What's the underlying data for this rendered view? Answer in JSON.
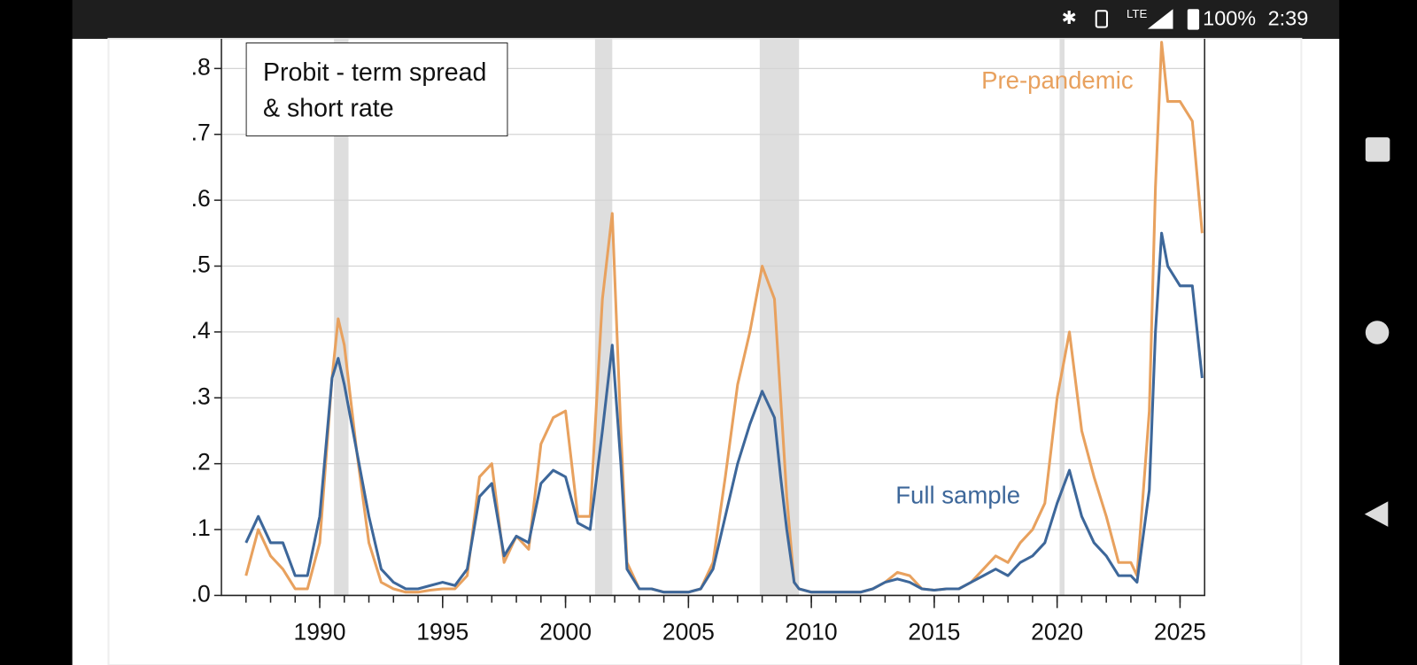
{
  "status_bar": {
    "network": "LTE",
    "battery": "100%",
    "time": "2:39"
  },
  "chart_data": {
    "type": "line",
    "title": "Probit - term spread & short rate",
    "annotations": [
      {
        "text": "Pre-pandemic",
        "color": "#e8a15e"
      },
      {
        "text": "Full sample",
        "color": "#3d679a"
      }
    ],
    "x": [
      1987,
      1987.5,
      1988,
      1988.5,
      1989,
      1989.5,
      1990,
      1990.5,
      1990.75,
      1991,
      1991.5,
      1992,
      1992.5,
      1993,
      1993.5,
      1994,
      1994.5,
      1995,
      1995.5,
      1996,
      1996.5,
      1997,
      1997.5,
      1998,
      1998.5,
      1999,
      1999.5,
      2000,
      2000.5,
      2001,
      2001.5,
      2001.9,
      2002.25,
      2002.5,
      2003,
      2003.5,
      2004,
      2004.5,
      2005,
      2005.5,
      2006,
      2006.5,
      2007,
      2007.5,
      2008,
      2008.5,
      2008.75,
      2009,
      2009.3,
      2009.5,
      2010,
      2011,
      2012,
      2012.5,
      2013,
      2013.5,
      2014,
      2014.5,
      2015,
      2015.5,
      2016,
      2016.5,
      2017,
      2017.5,
      2018,
      2018.5,
      2019,
      2019.5,
      2020,
      2020.5,
      2021,
      2021.5,
      2022,
      2022.5,
      2023,
      2023.25,
      2023.75,
      2024,
      2024.25,
      2024.5,
      2025,
      2025.5,
      2025.9
    ],
    "series": [
      {
        "name": "Full sample",
        "color": "#3d679a",
        "values": [
          0.08,
          0.12,
          0.08,
          0.08,
          0.03,
          0.03,
          0.12,
          0.33,
          0.36,
          0.32,
          0.22,
          0.12,
          0.04,
          0.02,
          0.01,
          0.01,
          0.015,
          0.02,
          0.015,
          0.04,
          0.15,
          0.17,
          0.06,
          0.09,
          0.08,
          0.17,
          0.19,
          0.18,
          0.11,
          0.1,
          0.25,
          0.38,
          0.2,
          0.04,
          0.01,
          0.01,
          0.005,
          0.005,
          0.005,
          0.01,
          0.04,
          0.12,
          0.2,
          0.26,
          0.31,
          0.27,
          0.18,
          0.1,
          0.02,
          0.01,
          0.005,
          0.005,
          0.005,
          0.01,
          0.02,
          0.025,
          0.02,
          0.01,
          0.008,
          0.01,
          0.01,
          0.02,
          0.03,
          0.04,
          0.03,
          0.05,
          0.06,
          0.08,
          0.14,
          0.19,
          0.12,
          0.08,
          0.06,
          0.03,
          0.03,
          0.02,
          0.16,
          0.4,
          0.55,
          0.5,
          0.47,
          0.47,
          0.33
        ]
      },
      {
        "name": "Pre-pandemic",
        "color": "#e8a15e",
        "values": [
          0.03,
          0.1,
          0.06,
          0.04,
          0.01,
          0.01,
          0.08,
          0.33,
          0.42,
          0.38,
          0.22,
          0.08,
          0.02,
          0.01,
          0.005,
          0.005,
          0.008,
          0.01,
          0.01,
          0.03,
          0.18,
          0.2,
          0.05,
          0.09,
          0.07,
          0.23,
          0.27,
          0.28,
          0.12,
          0.12,
          0.45,
          0.58,
          0.25,
          0.05,
          0.01,
          0.01,
          0.005,
          0.005,
          0.005,
          0.01,
          0.05,
          0.18,
          0.32,
          0.4,
          0.5,
          0.45,
          0.3,
          0.15,
          0.02,
          0.01,
          0.005,
          0.005,
          0.005,
          0.01,
          0.02,
          0.035,
          0.03,
          0.01,
          0.008,
          0.01,
          0.01,
          0.02,
          0.04,
          0.06,
          0.05,
          0.08,
          0.1,
          0.14,
          0.3,
          0.4,
          0.25,
          0.18,
          0.12,
          0.05,
          0.05,
          0.03,
          0.28,
          0.62,
          0.84,
          0.75,
          0.75,
          0.72,
          0.55
        ]
      }
    ],
    "recessions": [
      [
        1990.58,
        1991.17
      ],
      [
        2001.2,
        2001.9
      ],
      [
        2007.9,
        2009.5
      ],
      [
        2020.1,
        2020.3
      ]
    ],
    "recession_color": "#dedede",
    "xlim": [
      1986,
      2026
    ],
    "xticks": [
      1990,
      1995,
      2000,
      2005,
      2010,
      2015,
      2020,
      2025
    ],
    "xminorticks": [
      1987,
      1988,
      1989,
      1990,
      1991,
      1992,
      1993,
      1994,
      1995,
      1996,
      1997,
      1998,
      1999,
      2000,
      2001,
      2002,
      2003,
      2004,
      2005,
      2006,
      2007,
      2008,
      2009,
      2010,
      2011,
      2012,
      2013,
      2014,
      2015,
      2016,
      2017,
      2018,
      2019,
      2020,
      2021,
      2022,
      2023,
      2024,
      2025
    ],
    "ylim": [
      0,
      0.845
    ],
    "yticks": [
      {
        "value": 0,
        "label": ".0"
      },
      {
        "value": 0.1,
        "label": ".1"
      },
      {
        "value": 0.2,
        "label": ".2"
      },
      {
        "value": 0.3,
        "label": ".3"
      },
      {
        "value": 0.4,
        "label": ".4"
      },
      {
        "value": 0.5,
        "label": ".5"
      },
      {
        "value": 0.6,
        "label": ".6"
      },
      {
        "value": 0.7,
        "label": ".7"
      },
      {
        "value": 0.8,
        "label": ".8"
      }
    ],
    "grid": true
  }
}
